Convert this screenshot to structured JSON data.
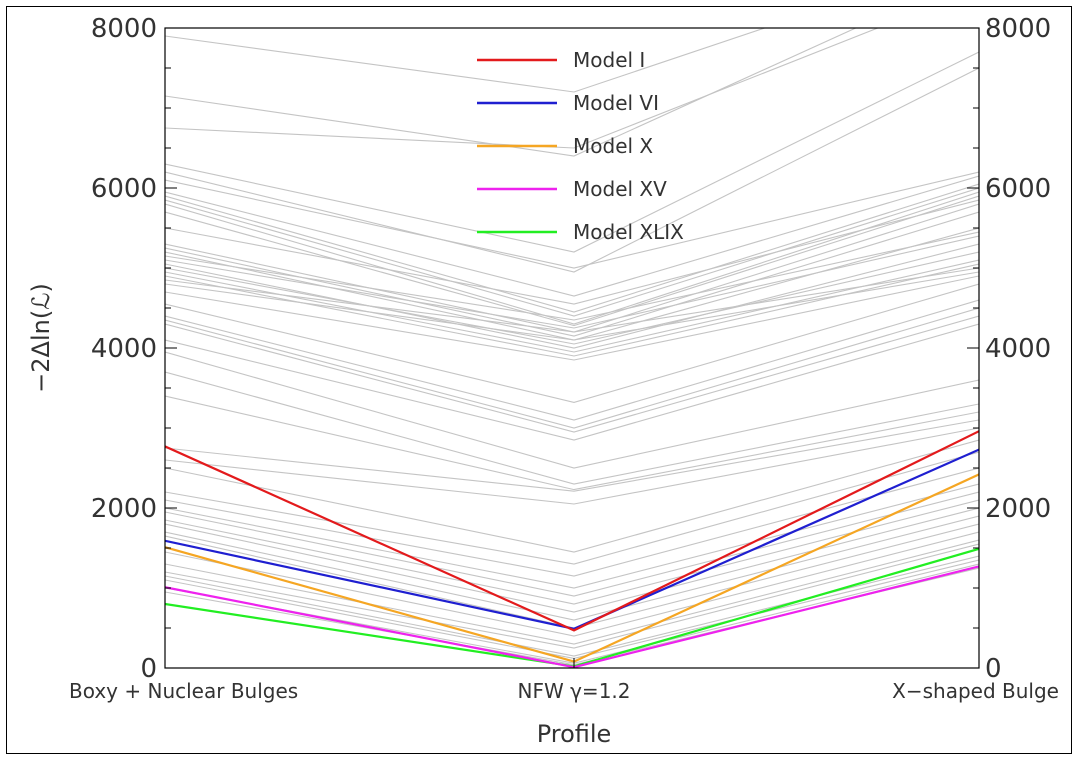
{
  "chart_data": {
    "type": "line",
    "title": "",
    "xlabel": "Profile",
    "ylabel": "−2Δln(ℒ)",
    "categories": [
      "Boxy + Nuclear Bulges",
      "NFW γ=1.2",
      "X−shaped Bulge"
    ],
    "ylim": [
      0,
      8000
    ],
    "yticks": [
      0,
      2000,
      4000,
      6000,
      8000
    ],
    "ytick_labels": [
      "0",
      "2000",
      "4000",
      "6000",
      "8000"
    ],
    "grid": false,
    "legend_position": "top-center",
    "series": [
      {
        "name": "Model I",
        "color": "#e31a1c",
        "values": [
          2770,
          470,
          2960
        ]
      },
      {
        "name": "Model VI",
        "color": "#1f1fd0",
        "values": [
          1590,
          490,
          2730
        ]
      },
      {
        "name": "Model X",
        "color": "#f5a623",
        "values": [
          1510,
          80,
          2420
        ]
      },
      {
        "name": "Model XV",
        "color": "#ee22ee",
        "values": [
          1010,
          10,
          1270
        ]
      },
      {
        "name": "Model XLIX",
        "color": "#22ee22",
        "values": [
          800,
          20,
          1490
        ]
      }
    ],
    "background_series_color": "#c4c4c4",
    "background_series": [
      [
        7900,
        7200,
        8900
      ],
      [
        7150,
        6400,
        8700
      ],
      [
        6750,
        6500,
        8500
      ],
      [
        6300,
        5200,
        7700
      ],
      [
        6200,
        4950,
        7500
      ],
      [
        6100,
        5000,
        6200
      ],
      [
        5950,
        4650,
        6150
      ],
      [
        5900,
        4450,
        6050
      ],
      [
        5850,
        4400,
        6000
      ],
      [
        5800,
        4300,
        5950
      ],
      [
        5700,
        4280,
        5900
      ],
      [
        5500,
        4550,
        5850
      ],
      [
        5300,
        4200,
        5800
      ],
      [
        5250,
        4150,
        5700
      ],
      [
        5200,
        4100,
        5500
      ],
      [
        5150,
        4350,
        5450
      ],
      [
        5100,
        4250,
        5400
      ],
      [
        5050,
        4000,
        5300
      ],
      [
        5000,
        4050,
        5200
      ],
      [
        4950,
        3950,
        5100
      ],
      [
        4900,
        3900,
        5050
      ],
      [
        4850,
        4200,
        5000
      ],
      [
        4800,
        4100,
        4950
      ],
      [
        4700,
        3850,
        4900
      ],
      [
        4550,
        3320,
        4800
      ],
      [
        4400,
        3100,
        4600
      ],
      [
        4350,
        3000,
        4500
      ],
      [
        4300,
        2950,
        4400
      ],
      [
        4100,
        2850,
        4300
      ],
      [
        3950,
        2500,
        3600
      ],
      [
        3700,
        2300,
        3300
      ],
      [
        3400,
        2230,
        3200
      ],
      [
        2750,
        2210,
        3100
      ],
      [
        2600,
        2050,
        3000
      ],
      [
        2500,
        1450,
        2850
      ],
      [
        2200,
        1300,
        2700
      ],
      [
        2100,
        1150,
        2500
      ],
      [
        2000,
        1000,
        2300
      ],
      [
        1950,
        900,
        2200
      ],
      [
        1850,
        800,
        2100
      ],
      [
        1800,
        700,
        2000
      ],
      [
        1700,
        600,
        1900
      ],
      [
        1650,
        500,
        1800
      ],
      [
        1450,
        400,
        1700
      ],
      [
        1300,
        300,
        1600
      ],
      [
        1200,
        250,
        1550
      ],
      [
        1150,
        150,
        1400
      ],
      [
        1100,
        120,
        1350
      ],
      [
        1000,
        60,
        1300
      ],
      [
        950,
        40,
        1250
      ]
    ]
  }
}
